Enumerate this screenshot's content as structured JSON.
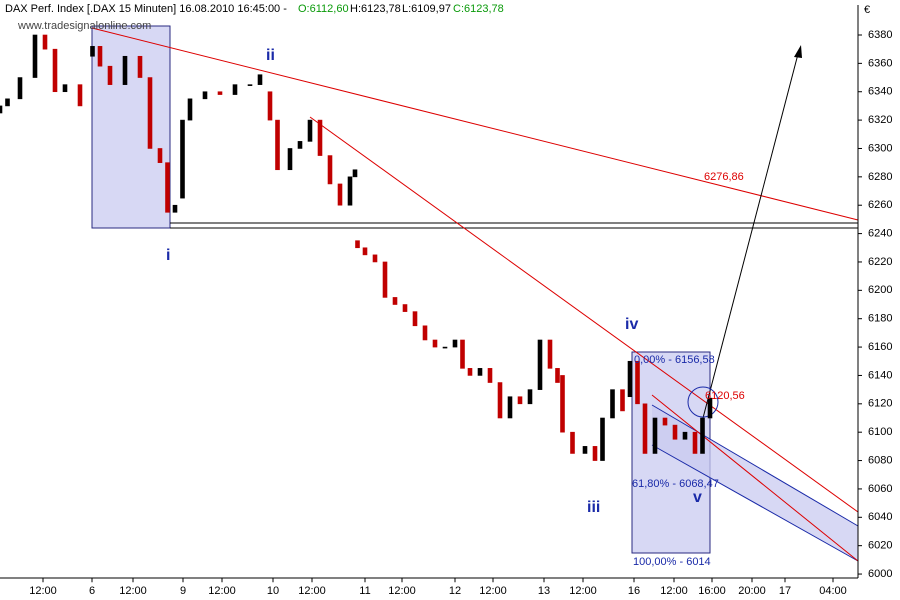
{
  "chart_data": {
    "type": "candlestick",
    "title": "DAX Perf. Index [.DAX  15 Minuten] 16.08.2010 16:45:00 -",
    "header_values": [
      "O:6112,60",
      "H:6123,78",
      "L:6109,97",
      "C:6123,78"
    ],
    "watermark": "www.tradesignalonline.com",
    "currency": "€",
    "x": [
      0,
      3,
      8,
      14,
      18,
      22,
      26,
      32,
      37,
      40,
      44,
      50,
      56,
      60,
      64,
      67,
      70,
      73,
      76,
      82,
      88,
      94,
      100,
      104,
      108,
      111,
      116,
      120,
      124,
      128,
      132,
      136,
      140,
      142,
      143,
      146,
      150,
      154,
      158,
      162,
      166,
      170,
      174,
      178,
      182,
      185,
      188,
      192,
      196,
      200,
      204,
      208,
      212,
      216,
      220,
      223,
      225,
      229,
      234,
      238,
      241,
      245,
      249,
      252,
      255,
      258,
      262,
      266,
      270,
      274,
      278,
      281,
      284
    ],
    "open": [
      6325,
      6330,
      6335,
      6350,
      6380,
      6370,
      6340,
      6345,
      6365,
      6372,
      6358,
      6345,
      6365,
      6350,
      6300,
      6290,
      6255,
      6265,
      6320,
      6335,
      6340,
      6338,
      6345,
      6345,
      6340,
      6320,
      6285,
      6300,
      6305,
      6320,
      6295,
      6275,
      6260,
      6280,
      6235,
      6230,
      6225,
      6220,
      6195,
      6190,
      6185,
      6175,
      6165,
      6160,
      6160,
      6165,
      6145,
      6140,
      6145,
      6135,
      6110,
      6125,
      6120,
      6130,
      6165,
      6145,
      6140,
      6100,
      6085,
      6090,
      6080,
      6110,
      6130,
      6125,
      6150,
      6120,
      6085,
      6110,
      6105,
      6095,
      6100,
      6085,
      6110
    ],
    "close": [
      6330,
      6335,
      6350,
      6380,
      6370,
      6340,
      6345,
      6330,
      6372,
      6358,
      6345,
      6365,
      6350,
      6300,
      6290,
      6255,
      6260,
      6320,
      6335,
      6340,
      6338,
      6345,
      6345,
      6352,
      6320,
      6285,
      6300,
      6305,
      6320,
      6295,
      6275,
      6260,
      6280,
      6285,
      6230,
      6225,
      6220,
      6195,
      6190,
      6185,
      6175,
      6165,
      6160,
      6160,
      6165,
      6145,
      6140,
      6145,
      6135,
      6110,
      6125,
      6120,
      6130,
      6165,
      6145,
      6135,
      6100,
      6085,
      6090,
      6080,
      6110,
      6130,
      6115,
      6150,
      6120,
      6085,
      6110,
      6105,
      6095,
      6100,
      6085,
      6110,
      6124
    ],
    "xlim": [
      0,
      343.2
    ],
    "xticks": [
      {
        "value": 17.2,
        "label": "12:00"
      },
      {
        "value": 36.8,
        "label": "6"
      },
      {
        "value": 53.2,
        "label": "12:00"
      },
      {
        "value": 73.2,
        "label": "9"
      },
      {
        "value": 88.8,
        "label": "12:00"
      },
      {
        "value": 109.2,
        "label": "10"
      },
      {
        "value": 124.8,
        "label": "12:00"
      },
      {
        "value": 146,
        "label": "11"
      },
      {
        "value": 160.8,
        "label": "12:00"
      },
      {
        "value": 182,
        "label": "12"
      },
      {
        "value": 197.2,
        "label": "12:00"
      },
      {
        "value": 217.6,
        "label": "13"
      },
      {
        "value": 233.2,
        "label": "12:00"
      },
      {
        "value": 253.6,
        "label": "16"
      },
      {
        "value": 269.6,
        "label": "12:00"
      },
      {
        "value": 284.8,
        "label": "16:00"
      },
      {
        "value": 300.8,
        "label": "20:00"
      },
      {
        "value": 314,
        "label": "17"
      },
      {
        "value": 333.2,
        "label": "04:00"
      }
    ],
    "ylim": [
      5997,
      6401
    ],
    "yticks": [
      6000,
      6020,
      6040,
      6060,
      6080,
      6100,
      6120,
      6140,
      6160,
      6180,
      6200,
      6220,
      6240,
      6260,
      6280,
      6300,
      6320,
      6340,
      6360,
      6380
    ],
    "up_color": "#000000",
    "down_color": "#c00000",
    "wave_labels": [
      "i",
      "ii",
      "iii",
      "iv",
      "v"
    ],
    "level_labels": [
      "6276,86",
      "6120,56",
      "0,00% - 6156,58",
      "61,80% - 6068,47",
      "100,00% - 6014"
    ]
  }
}
